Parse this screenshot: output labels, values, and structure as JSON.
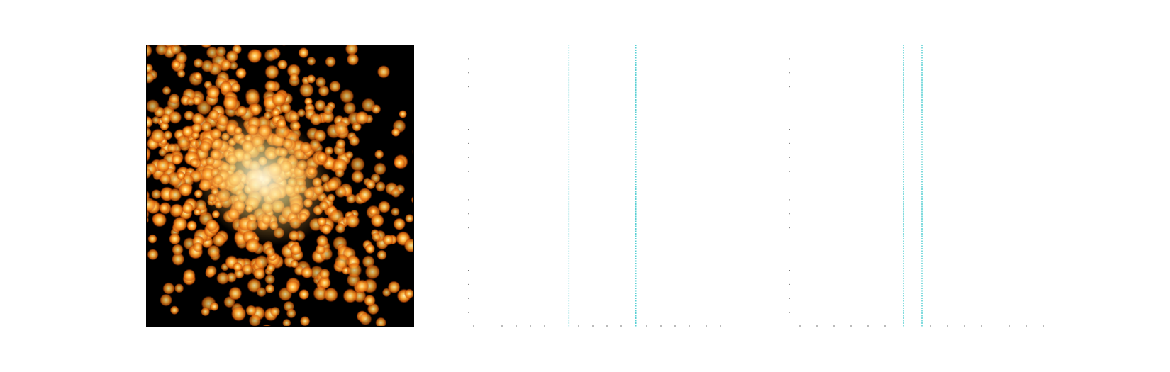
{
  "chart_data": [
    {
      "type": "heatmap",
      "title": "",
      "xlabel": "",
      "ylabel": "",
      "colormap": "afmhot",
      "colors": {
        "background": "#000000",
        "low": "#a83200",
        "mid": "#ff8a1e",
        "high": "#fff6b8"
      },
      "core": {
        "x": 0.38,
        "y": 0.45
      },
      "spread": {
        "x": 0.24,
        "y": 0.27
      },
      "elongation_angle_deg": 35,
      "blob_count": 820,
      "seed": 7
    },
    {
      "type": "line",
      "title": "",
      "xlabel": "",
      "ylabel": "",
      "grid": false,
      "tick_labels_visible": false,
      "xlim": [
        0,
        1
      ],
      "vertical_lines": [
        0.356,
        0.592
      ],
      "vertical_line_color": "#3ec8cc",
      "minor_x_ticks": [
        0.02,
        0.12,
        0.17,
        0.22,
        0.27,
        0.39,
        0.44,
        0.49,
        0.54,
        0.63,
        0.68,
        0.73,
        0.78,
        0.84,
        0.89
      ],
      "minor_y_ticks": [
        0.05,
        0.1,
        0.15,
        0.2,
        0.3,
        0.35,
        0.4,
        0.45,
        0.55,
        0.6,
        0.65,
        0.7,
        0.8,
        0.85,
        0.9,
        0.95
      ]
    },
    {
      "type": "line",
      "title": "",
      "xlabel": "",
      "ylabel": "",
      "grid": false,
      "tick_labels_visible": false,
      "xlim": [
        0,
        1
      ],
      "vertical_lines": [
        0.405,
        0.47
      ],
      "vertical_line_color": "#3ec8cc",
      "minor_x_ticks": [
        0.04,
        0.1,
        0.16,
        0.22,
        0.28,
        0.34,
        0.5,
        0.56,
        0.62,
        0.68,
        0.78,
        0.84,
        0.9
      ],
      "minor_y_ticks": [
        0.05,
        0.1,
        0.15,
        0.2,
        0.3,
        0.35,
        0.4,
        0.45,
        0.55,
        0.6,
        0.65,
        0.7,
        0.8,
        0.85,
        0.9,
        0.95
      ]
    }
  ]
}
